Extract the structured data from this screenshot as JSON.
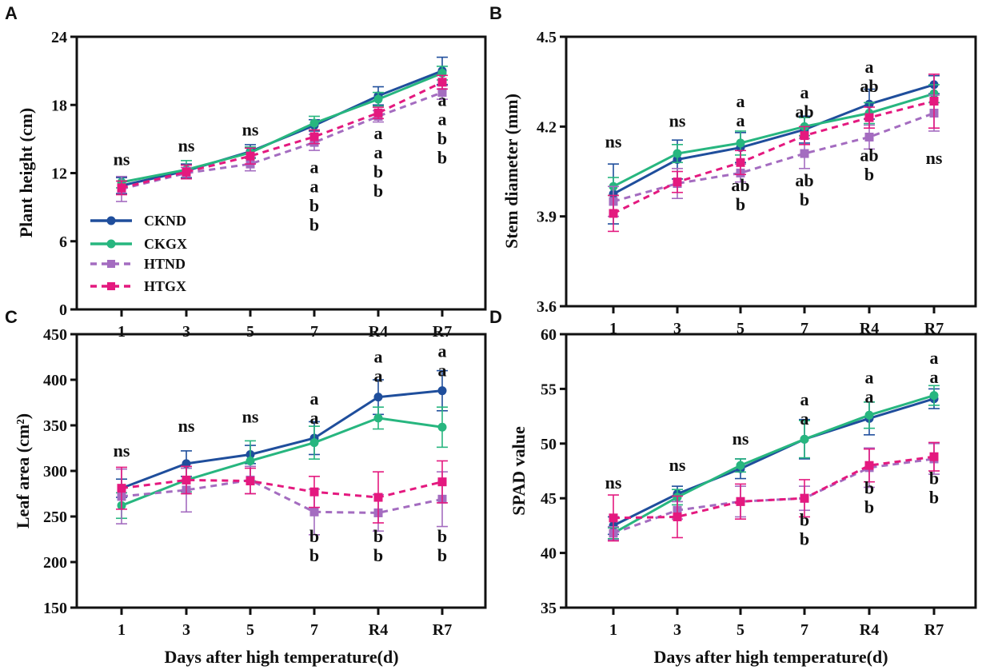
{
  "figure": {
    "x_axis_title": "Days after high temperature(d)",
    "legend": [
      "CKND",
      "CKGX",
      "HTND",
      "HTGX"
    ]
  },
  "series_style": {
    "CKND": {
      "color": "#1f4e9c",
      "dash": false,
      "marker": "circle"
    },
    "CKGX": {
      "color": "#27b67f",
      "dash": false,
      "marker": "circle"
    },
    "HTND": {
      "color": "#a46cc0",
      "dash": true,
      "marker": "square"
    },
    "HTGX": {
      "color": "#e4197f",
      "dash": true,
      "marker": "square"
    }
  },
  "chart_data": [
    {
      "type": "line",
      "panel": "A",
      "title": "",
      "ylabel": "Plant height (cm)",
      "xlabel": "",
      "categories": [
        "1",
        "3",
        "5",
        "7",
        "R4",
        "R7"
      ],
      "yticks": [
        "0",
        "6",
        "12",
        "18",
        "24"
      ],
      "ylim": [
        0,
        24
      ],
      "series": [
        {
          "name": "CKND",
          "values": [
            10.9,
            12.2,
            13.9,
            16.2,
            18.8,
            21.0
          ],
          "err": [
            0.7,
            0.6,
            0.6,
            0.5,
            0.8,
            1.2
          ]
        },
        {
          "name": "CKGX",
          "values": [
            11.2,
            12.3,
            13.8,
            16.4,
            18.5,
            20.8
          ],
          "err": [
            0.5,
            0.8,
            0.5,
            0.6,
            0.6,
            0.6
          ]
        },
        {
          "name": "HTND",
          "values": [
            10.6,
            12.0,
            12.8,
            14.7,
            17.0,
            19.1
          ],
          "err": [
            1.1,
            0.5,
            0.6,
            0.7,
            0.5,
            0.6
          ]
        },
        {
          "name": "HTGX",
          "values": [
            10.7,
            12.1,
            13.5,
            15.2,
            17.3,
            20.0
          ],
          "err": [
            0.6,
            0.6,
            0.7,
            0.6,
            0.5,
            0.6
          ]
        }
      ],
      "significance": [
        {
          "category": "1",
          "at": 12.7,
          "labels": [
            "ns"
          ]
        },
        {
          "category": "3",
          "at": 13.9,
          "labels": [
            "ns"
          ]
        },
        {
          "category": "5",
          "at": 15.3,
          "labels": [
            "ns"
          ]
        },
        {
          "category": "7",
          "at": 12.0,
          "labels": [
            "a",
            "a",
            "b",
            "b"
          ]
        },
        {
          "category": "R4",
          "at": 15.0,
          "labels": [
            "a",
            "a",
            "b",
            "b"
          ]
        },
        {
          "category": "R7",
          "at": 17.9,
          "labels": [
            "a",
            "a",
            "b",
            "b"
          ]
        }
      ]
    },
    {
      "type": "line",
      "panel": "B",
      "title": "",
      "ylabel": "Stem diameter (mm)",
      "xlabel": "",
      "categories": [
        "1",
        "3",
        "5",
        "7",
        "R4",
        "R7"
      ],
      "yticks": [
        "3.6",
        "3.9",
        "4.2",
        "4.5"
      ],
      "ylim": [
        3.6,
        4.5
      ],
      "series": [
        {
          "name": "CKND",
          "values": [
            3.975,
            4.09,
            4.13,
            4.19,
            4.275,
            4.34
          ],
          "err": [
            0.1,
            0.065,
            0.05,
            0.045,
            0.05,
            0.03
          ]
        },
        {
          "name": "CKGX",
          "values": [
            4.0,
            4.11,
            4.145,
            4.2,
            4.245,
            4.31
          ],
          "err": [
            0.03,
            0.03,
            0.04,
            0.03,
            0.035,
            0.03
          ]
        },
        {
          "name": "HTND",
          "values": [
            3.95,
            4.01,
            4.045,
            4.11,
            4.165,
            4.245
          ],
          "err": [
            0.05,
            0.05,
            0.03,
            0.05,
            0.04,
            0.06
          ]
        },
        {
          "name": "HTGX",
          "values": [
            3.91,
            4.015,
            4.08,
            4.17,
            4.23,
            4.285
          ],
          "err": [
            0.06,
            0.035,
            0.04,
            0.03,
            0.035,
            0.09
          ]
        }
      ],
      "significance": [
        {
          "category": "1",
          "at": 4.13,
          "labels": [
            "ns"
          ]
        },
        {
          "category": "3",
          "at": 4.2,
          "labels": [
            "ns"
          ]
        },
        {
          "category": "5",
          "at": 4.265,
          "labels": [
            "a",
            "a"
          ]
        },
        {
          "category": "7",
          "at": 4.295,
          "labels": [
            "a",
            "ab"
          ]
        },
        {
          "category": "R4",
          "at": 4.38,
          "labels": [
            "a",
            "ab"
          ]
        },
        {
          "category": "5",
          "at": 3.985,
          "labels": [
            "ab",
            "b"
          ]
        },
        {
          "category": "7",
          "at": 4.0,
          "labels": [
            "ab",
            "b"
          ]
        },
        {
          "category": "R4",
          "at": 4.085,
          "labels": [
            "ab",
            "b"
          ]
        },
        {
          "category": "R7",
          "at": 4.075,
          "labels": [
            "ns"
          ]
        }
      ]
    },
    {
      "type": "line",
      "panel": "C",
      "title": "",
      "ylabel": "Leaf area (cm²)",
      "xlabel": "Days after high temperature(d)",
      "categories": [
        "1",
        "3",
        "5",
        "7",
        "R4",
        "R7"
      ],
      "yticks": [
        "150",
        "200",
        "250",
        "300",
        "350",
        "400",
        "450"
      ],
      "ylim": [
        150,
        450
      ],
      "series": [
        {
          "name": "CKND",
          "values": [
            281,
            308,
            318,
            336,
            381,
            388
          ],
          "err": [
            10,
            14,
            10,
            18,
            19,
            22
          ]
        },
        {
          "name": "CKGX",
          "values": [
            262,
            290,
            311,
            331,
            358,
            348
          ],
          "err": [
            14,
            13,
            22,
            18,
            12,
            22
          ]
        },
        {
          "name": "HTND",
          "values": [
            272,
            279,
            290,
            255,
            254,
            269
          ],
          "err": [
            30,
            24,
            15,
            25,
            20,
            30
          ]
        },
        {
          "name": "HTGX",
          "values": [
            281,
            290,
            289,
            277,
            271,
            288
          ],
          "err": [
            23,
            15,
            14,
            17,
            28,
            23
          ]
        }
      ],
      "significance": [
        {
          "category": "1",
          "at": 316,
          "labels": [
            "ns"
          ]
        },
        {
          "category": "3",
          "at": 343,
          "labels": [
            "ns"
          ]
        },
        {
          "category": "5",
          "at": 353,
          "labels": [
            "ns"
          ]
        },
        {
          "category": "7",
          "at": 373,
          "labels": [
            "a",
            "a"
          ]
        },
        {
          "category": "R4",
          "at": 419,
          "labels": [
            "a",
            "a"
          ]
        },
        {
          "category": "R7",
          "at": 425,
          "labels": [
            "a",
            "a"
          ]
        },
        {
          "category": "7",
          "at": 222,
          "labels": [
            "b",
            "b"
          ]
        },
        {
          "category": "R4",
          "at": 222,
          "labels": [
            "b",
            "b"
          ]
        },
        {
          "category": "R7",
          "at": 222,
          "labels": [
            "b",
            "b"
          ]
        }
      ]
    },
    {
      "type": "line",
      "panel": "D",
      "title": "",
      "ylabel": "SPAD value",
      "xlabel": "Days after high temperature(d)",
      "categories": [
        "1",
        "3",
        "5",
        "7",
        "R4",
        "R7"
      ],
      "yticks": [
        "35",
        "40",
        "45",
        "50",
        "55",
        "60"
      ],
      "ylim": [
        35,
        60
      ],
      "series": [
        {
          "name": "CKND",
          "values": [
            42.5,
            45.4,
            47.7,
            50.4,
            52.3,
            54.1
          ],
          "err": [
            0.8,
            0.7,
            0.9,
            1.8,
            1.5,
            0.9
          ]
        },
        {
          "name": "CKGX",
          "values": [
            41.8,
            45.1,
            48.0,
            50.4,
            52.6,
            54.4
          ],
          "err": [
            0.5,
            0.7,
            0.6,
            1.7,
            1.2,
            0.9
          ]
        },
        {
          "name": "HTND",
          "values": [
            41.8,
            43.9,
            44.7,
            45.0,
            47.8,
            48.6
          ],
          "err": [
            0.6,
            0.8,
            1.4,
            1.1,
            1.8,
            1.4
          ]
        },
        {
          "name": "HTGX",
          "values": [
            43.2,
            43.3,
            44.7,
            45.0,
            48.0,
            48.8
          ],
          "err": [
            2.1,
            1.9,
            1.6,
            1.7,
            1.5,
            1.3
          ]
        }
      ],
      "significance": [
        {
          "category": "1",
          "at": 45.9,
          "labels": [
            "ns"
          ]
        },
        {
          "category": "3",
          "at": 47.5,
          "labels": [
            "ns"
          ]
        },
        {
          "category": "5",
          "at": 49.9,
          "labels": [
            "ns"
          ]
        },
        {
          "category": "7",
          "at": 53.5,
          "labels": [
            "a",
            "a"
          ]
        },
        {
          "category": "R4",
          "at": 55.5,
          "labels": [
            "a",
            "a"
          ]
        },
        {
          "category": "R7",
          "at": 57.3,
          "labels": [
            "a",
            "a"
          ]
        },
        {
          "category": "7",
          "at": 42.5,
          "labels": [
            "b",
            "b"
          ]
        },
        {
          "category": "R4",
          "at": 45.4,
          "labels": [
            "b",
            "b"
          ]
        },
        {
          "category": "R7",
          "at": 46.3,
          "labels": [
            "b",
            "b"
          ]
        }
      ]
    }
  ]
}
